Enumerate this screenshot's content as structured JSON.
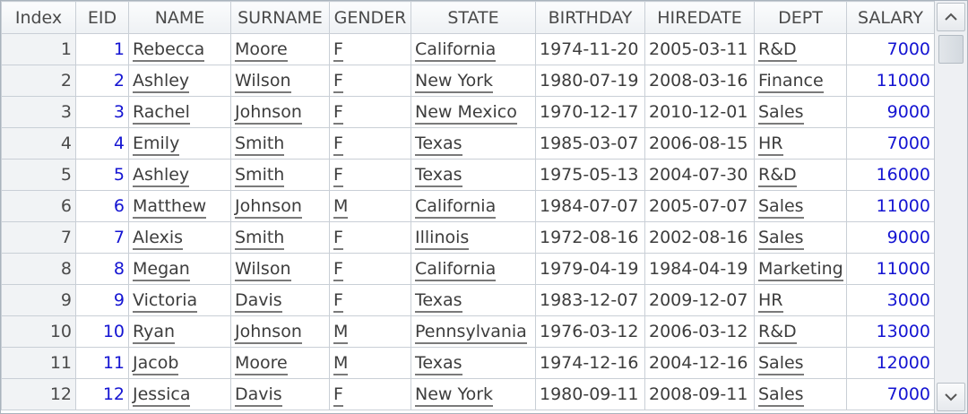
{
  "table": {
    "columns": [
      "Index",
      "EID",
      "NAME",
      "SURNAME",
      "GENDER",
      "STATE",
      "BIRTHDAY",
      "HIREDATE",
      "DEPT",
      "SALARY"
    ],
    "rows": [
      [
        "1",
        "1",
        "Rebecca",
        "Moore",
        "F",
        "California",
        "1974-11-20",
        "2005-03-11",
        "R&D",
        "7000"
      ],
      [
        "2",
        "2",
        "Ashley",
        "Wilson",
        "F",
        "New York",
        "1980-07-19",
        "2008-03-16",
        "Finance",
        "11000"
      ],
      [
        "3",
        "3",
        "Rachel",
        "Johnson",
        "F",
        "New Mexico",
        "1970-12-17",
        "2010-12-01",
        "Sales",
        "9000"
      ],
      [
        "4",
        "4",
        "Emily",
        "Smith",
        "F",
        "Texas",
        "1985-03-07",
        "2006-08-15",
        "HR",
        "7000"
      ],
      [
        "5",
        "5",
        "Ashley",
        "Smith",
        "F",
        "Texas",
        "1975-05-13",
        "2004-07-30",
        "R&D",
        "16000"
      ],
      [
        "6",
        "6",
        "Matthew",
        "Johnson",
        "M",
        "California",
        "1984-07-07",
        "2005-07-07",
        "Sales",
        "11000"
      ],
      [
        "7",
        "7",
        "Alexis",
        "Smith",
        "F",
        "Illinois",
        "1972-08-16",
        "2002-08-16",
        "Sales",
        "9000"
      ],
      [
        "8",
        "8",
        "Megan",
        "Wilson",
        "F",
        "California",
        "1979-04-19",
        "1984-04-19",
        "Marketing",
        "11000"
      ],
      [
        "9",
        "9",
        "Victoria",
        "Davis",
        "F",
        "Texas",
        "1983-12-07",
        "2009-12-07",
        "HR",
        "3000"
      ],
      [
        "10",
        "10",
        "Ryan",
        "Johnson",
        "M",
        "Pennsylvania",
        "1976-03-12",
        "2006-03-12",
        "R&D",
        "13000"
      ],
      [
        "11",
        "11",
        "Jacob",
        "Moore",
        "M",
        "Texas",
        "1974-12-16",
        "2004-12-16",
        "Sales",
        "12000"
      ],
      [
        "12",
        "12",
        "Jessica",
        "Davis",
        "F",
        "New York",
        "1980-09-11",
        "2008-09-11",
        "Sales",
        "7000"
      ]
    ]
  },
  "scrollbar": {
    "up_icon": "chevron-up-icon",
    "down_icon": "chevron-down-icon",
    "position_fraction": 0.0
  },
  "colors": {
    "number_text": "#1414d2",
    "header_bg": "#eef1f4",
    "grid_line": "#c9cfd6"
  }
}
